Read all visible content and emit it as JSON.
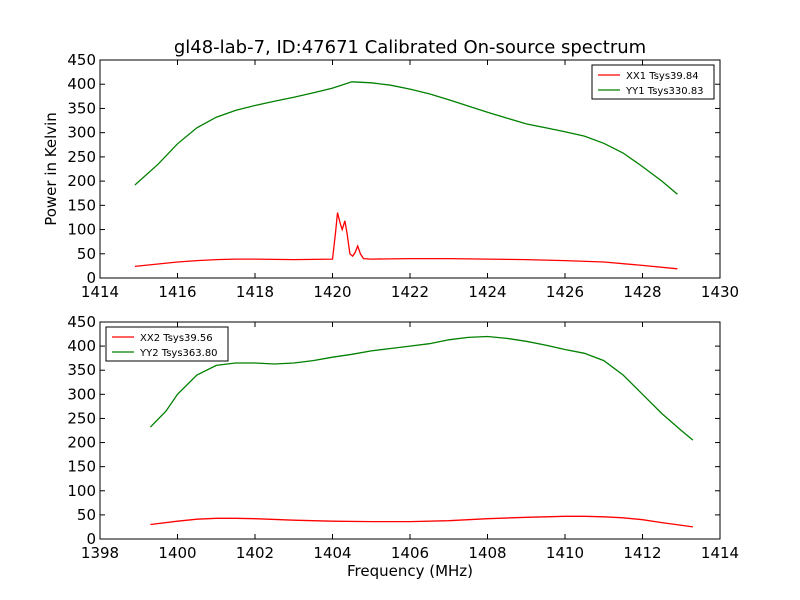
{
  "chart_data": [
    {
      "type": "line",
      "title": "gl48-lab-7, ID:47671 Calibrated On-source spectrum",
      "xlabel": "",
      "ylabel": "Power in Kelvin",
      "xlim": [
        1414,
        1430
      ],
      "ylim": [
        0,
        450
      ],
      "xticks": [
        1414,
        1416,
        1418,
        1420,
        1422,
        1424,
        1426,
        1428,
        1430
      ],
      "yticks": [
        0,
        50,
        100,
        150,
        200,
        250,
        300,
        350,
        400,
        450
      ],
      "grid": false,
      "legend": "top-right",
      "series": [
        {
          "name": "XX1 Tsys39.84",
          "color": "#ff0000",
          "x": [
            1414.9,
            1415.5,
            1416.0,
            1416.5,
            1417.0,
            1417.5,
            1418.0,
            1419.0,
            1420.0,
            1420.08,
            1420.13,
            1420.2,
            1420.25,
            1420.32,
            1420.38,
            1420.45,
            1420.52,
            1420.58,
            1420.65,
            1420.72,
            1420.8,
            1421.0,
            1422.0,
            1423.0,
            1424.0,
            1425.0,
            1426.0,
            1427.0,
            1428.0,
            1428.9
          ],
          "y": [
            24,
            29,
            33,
            36,
            38,
            39,
            39,
            38,
            39,
            95,
            135,
            112,
            100,
            118,
            90,
            50,
            45,
            52,
            66,
            50,
            40,
            39,
            40,
            40,
            39,
            38,
            36,
            33,
            26,
            19
          ]
        },
        {
          "name": "YY1 Tsys330.83",
          "color": "#008000",
          "x": [
            1414.9,
            1415.5,
            1416.0,
            1416.5,
            1417.0,
            1417.5,
            1418.0,
            1418.5,
            1419.0,
            1419.5,
            1420.0,
            1420.5,
            1421.0,
            1421.5,
            1422.0,
            1422.5,
            1423.0,
            1423.5,
            1424.0,
            1424.5,
            1425.0,
            1425.5,
            1426.0,
            1426.5,
            1427.0,
            1427.5,
            1428.0,
            1428.5,
            1428.9
          ],
          "y": [
            192,
            235,
            277,
            310,
            332,
            346,
            356,
            365,
            373,
            382,
            392,
            405,
            403,
            398,
            390,
            380,
            368,
            355,
            342,
            330,
            318,
            310,
            302,
            293,
            278,
            258,
            230,
            200,
            173
          ]
        }
      ]
    },
    {
      "type": "line",
      "title": "",
      "xlabel": "Frequency (MHz)",
      "ylabel": "",
      "xlim": [
        1398,
        1414
      ],
      "ylim": [
        0,
        450
      ],
      "xticks": [
        1398,
        1400,
        1402,
        1404,
        1406,
        1408,
        1410,
        1412,
        1414
      ],
      "yticks": [
        0,
        50,
        100,
        150,
        200,
        250,
        300,
        350,
        400,
        450
      ],
      "grid": false,
      "legend": "top-left",
      "series": [
        {
          "name": "XX2 Tsys39.56",
          "color": "#ff0000",
          "x": [
            1399.3,
            1400.0,
            1400.5,
            1401.0,
            1401.5,
            1402.0,
            1403.0,
            1404.0,
            1405.0,
            1406.0,
            1407.0,
            1408.0,
            1409.0,
            1410.0,
            1410.5,
            1411.0,
            1411.5,
            1412.0,
            1412.5,
            1413.3
          ],
          "y": [
            30,
            37,
            41,
            43,
            43,
            42,
            39,
            37,
            36,
            36,
            38,
            42,
            45,
            47,
            47,
            46,
            44,
            40,
            34,
            25
          ]
        },
        {
          "name": "YY2 Tsys363.80",
          "color": "#008000",
          "x": [
            1399.3,
            1399.7,
            1400.0,
            1400.5,
            1401.0,
            1401.5,
            1402.0,
            1402.5,
            1403.0,
            1403.5,
            1404.0,
            1404.5,
            1405.0,
            1405.5,
            1406.0,
            1406.5,
            1407.0,
            1407.5,
            1408.0,
            1408.5,
            1409.0,
            1409.5,
            1410.0,
            1410.5,
            1411.0,
            1411.5,
            1412.0,
            1412.5,
            1413.0,
            1413.3
          ],
          "y": [
            232,
            265,
            300,
            340,
            360,
            365,
            365,
            363,
            365,
            370,
            377,
            383,
            390,
            395,
            400,
            405,
            413,
            418,
            420,
            416,
            410,
            402,
            393,
            385,
            370,
            340,
            300,
            260,
            225,
            205
          ]
        }
      ]
    }
  ]
}
